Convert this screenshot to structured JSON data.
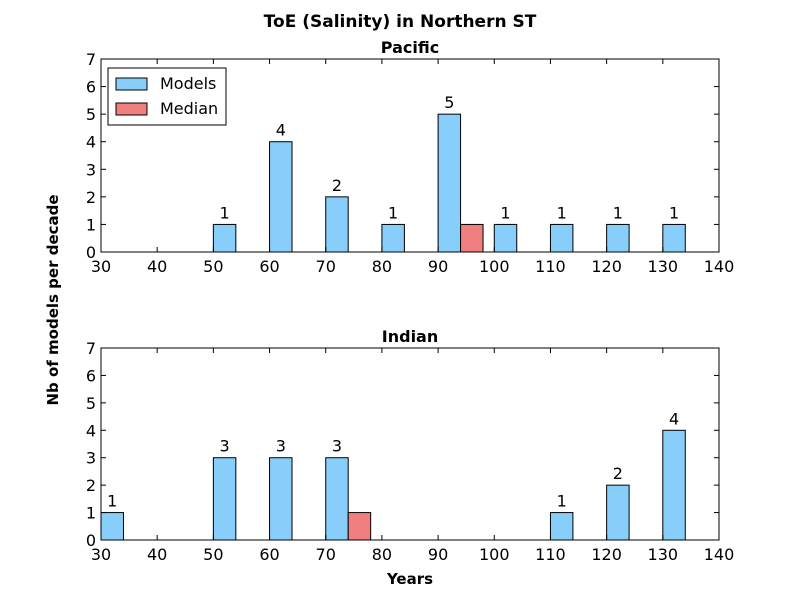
{
  "figure": {
    "title": "ToE (Salinity) in Northern ST",
    "ylabel": "Nb of models per decade",
    "xlabel": "Years"
  },
  "colors": {
    "models": "#87cefa",
    "median": "#f08080",
    "edge": "#000000"
  },
  "chart_data": [
    {
      "type": "bar",
      "title": "Pacific",
      "xlim": [
        30,
        140
      ],
      "ylim": [
        0,
        7
      ],
      "xticks": [
        30,
        40,
        50,
        60,
        70,
        80,
        90,
        100,
        110,
        120,
        130,
        140
      ],
      "yticks": [
        0,
        1,
        2,
        3,
        4,
        5,
        6,
        7
      ],
      "legend": {
        "placement": "top-left",
        "entries": [
          "Models",
          "Median"
        ]
      },
      "series": [
        {
          "name": "Models",
          "bin_width": 4,
          "x": [
            50,
            60,
            70,
            80,
            90,
            100,
            110,
            120,
            130
          ],
          "values": [
            1,
            4,
            2,
            1,
            5,
            1,
            1,
            1,
            1
          ]
        },
        {
          "name": "Median",
          "bin_width": 4,
          "x": [
            94
          ],
          "values": [
            1
          ]
        }
      ],
      "show_value_labels_for": "Models"
    },
    {
      "type": "bar",
      "title": "Indian",
      "xlim": [
        30,
        140
      ],
      "ylim": [
        0,
        7
      ],
      "xticks": [
        30,
        40,
        50,
        60,
        70,
        80,
        90,
        100,
        110,
        120,
        130,
        140
      ],
      "yticks": [
        0,
        1,
        2,
        3,
        4,
        5,
        6,
        7
      ],
      "series": [
        {
          "name": "Models",
          "bin_width": 4,
          "x": [
            30,
            50,
            60,
            70,
            110,
            120,
            130
          ],
          "values": [
            1,
            3,
            3,
            3,
            1,
            2,
            4
          ]
        },
        {
          "name": "Median",
          "bin_width": 4,
          "x": [
            74
          ],
          "values": [
            1
          ]
        }
      ],
      "show_value_labels_for": "Models"
    }
  ]
}
